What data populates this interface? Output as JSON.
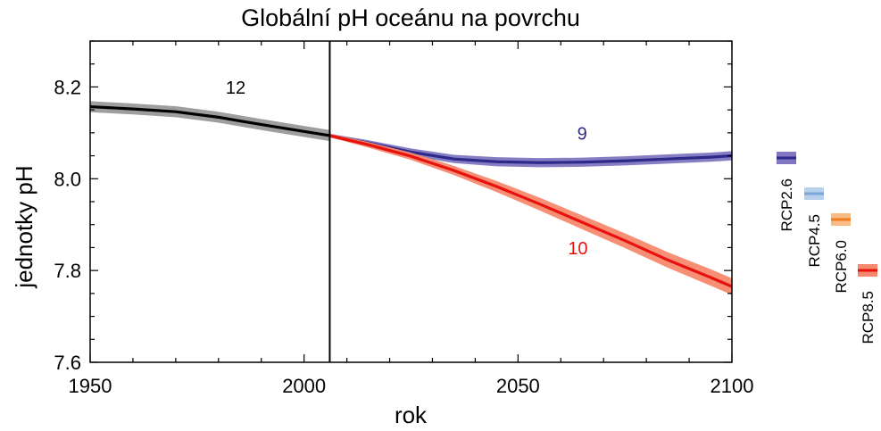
{
  "chart_data": {
    "type": "line",
    "title": "Globální pH oceánu na povrchu",
    "xlabel": "rok",
    "ylabel": "jednotky pH",
    "xlim": [
      1950,
      2100
    ],
    "ylim": [
      7.6,
      8.3
    ],
    "x_ticks": [
      1950,
      2000,
      2050,
      2100
    ],
    "x_tick_labels": [
      "1950",
      "2000",
      "2050",
      "2100"
    ],
    "y_ticks": [
      7.6,
      7.8,
      8.0,
      8.2
    ],
    "y_tick_labels": [
      "7.6",
      "7.8",
      "8.0",
      "8.2"
    ],
    "divider_x": 2006,
    "series": [
      {
        "key": "historical",
        "color": "#000000",
        "band_color": "#999999",
        "x": [
          1950,
          1960,
          1970,
          1980,
          1990,
          2000,
          2006
        ],
        "y": [
          8.157,
          8.152,
          8.146,
          8.134,
          8.118,
          8.103,
          8.094
        ],
        "band_halfwidth": 0.012
      },
      {
        "name": "RCP2.6",
        "color": "#2e2a8a",
        "band_color": "#8077c0",
        "x": [
          2006,
          2015,
          2025,
          2035,
          2045,
          2055,
          2065,
          2075,
          2085,
          2095,
          2100
        ],
        "y": [
          8.094,
          8.078,
          8.058,
          8.043,
          8.037,
          8.035,
          8.036,
          8.039,
          8.043,
          8.047,
          8.05
        ],
        "band_halfwidth": [
          0.004,
          0.006,
          0.008,
          0.009,
          0.01,
          0.01,
          0.01,
          0.01,
          0.01,
          0.01,
          0.01
        ]
      },
      {
        "name": "RCP8.5",
        "color": "#e8120c",
        "band_color": "#f5896e",
        "x": [
          2006,
          2015,
          2025,
          2035,
          2045,
          2055,
          2065,
          2075,
          2085,
          2095,
          2100
        ],
        "y": [
          8.094,
          8.074,
          8.049,
          8.018,
          7.983,
          7.945,
          7.905,
          7.865,
          7.823,
          7.785,
          7.765
        ],
        "band_halfwidth": [
          0.004,
          0.006,
          0.008,
          0.01,
          0.012,
          0.014,
          0.015,
          0.016,
          0.017,
          0.018,
          0.018
        ]
      }
    ],
    "annotations": [
      {
        "text": "12",
        "x": 1984,
        "y": 8.185,
        "color": "#000000"
      },
      {
        "text": "9",
        "x": 2065,
        "y": 8.085,
        "color": "#2e2a8a"
      },
      {
        "text": "10",
        "x": 2064,
        "y": 7.835,
        "color": "#e8120c"
      }
    ],
    "legend": {
      "position": "right",
      "items": [
        {
          "label": "RCP2.6",
          "color": "#2e2a8a",
          "band_color": "#8077c0"
        },
        {
          "label": "RCP4.5",
          "color": "#7ba6d8",
          "band_color": "#b9d0ec"
        },
        {
          "label": "RCP6.0",
          "color": "#f07e1e",
          "band_color": "#f8bc86"
        },
        {
          "label": "RCP8.5",
          "color": "#e8120c",
          "band_color": "#f5896e"
        }
      ]
    }
  }
}
